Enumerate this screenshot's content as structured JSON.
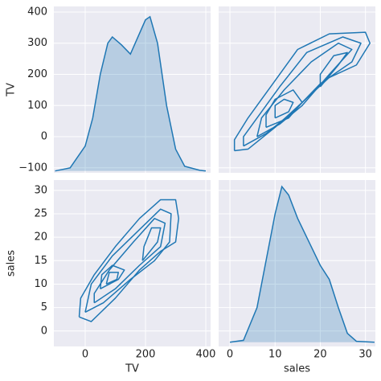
{
  "chart_data": [
    {
      "type": "area",
      "color": "#1f77b4",
      "ylabel": "TV",
      "show_xticks": false,
      "show_yticks": true,
      "xlim": [
        -104,
        416
      ],
      "ylim": [
        -116,
        418
      ],
      "xticks": [
        0,
        200,
        400
      ],
      "yticks": [
        {
          "value": -100,
          "label": "−100"
        },
        0,
        100,
        200,
        300,
        400
      ],
      "x": [
        -100,
        -50,
        0,
        25,
        50,
        75,
        90,
        120,
        150,
        175,
        200,
        215,
        240,
        270,
        300,
        330,
        380,
        400
      ],
      "values": [
        -110,
        -100,
        -30,
        60,
        200,
        300,
        320,
        295,
        265,
        320,
        375,
        385,
        300,
        100,
        -40,
        -95,
        -108,
        -110
      ]
    },
    {
      "type": "contour",
      "color": "#1f77b4",
      "show_xticks": false,
      "show_yticks": false,
      "xlim": [
        -2.5,
        32.2
      ],
      "ylim": [
        -116,
        418
      ],
      "xticks": [
        0,
        10,
        20,
        30
      ],
      "yticks": [
        -100,
        0,
        100,
        200,
        300,
        400
      ],
      "contours": [
        {
          "x": [
            1,
            4,
            10,
            16,
            22,
            28,
            31,
            30,
            22,
            15,
            9,
            4,
            1,
            1
          ],
          "y": [
            -45,
            -40,
            30,
            110,
            190,
            230,
            300,
            335,
            330,
            280,
            160,
            60,
            -10,
            -45
          ]
        },
        {
          "x": [
            3,
            8,
            14,
            20,
            27,
            29,
            25,
            17,
            11,
            6,
            3,
            3
          ],
          "y": [
            -30,
            10,
            80,
            170,
            240,
            300,
            320,
            270,
            160,
            60,
            0,
            -30
          ]
        },
        {
          "x": [
            6,
            11,
            16,
            22,
            27,
            24,
            18,
            12,
            7,
            6
          ],
          "y": [
            0,
            40,
            100,
            200,
            280,
            300,
            240,
            150,
            60,
            0
          ]
        },
        {
          "x": [
            8,
            13,
            16,
            14,
            10,
            8,
            8
          ],
          "y": [
            30,
            60,
            110,
            150,
            120,
            70,
            30
          ]
        },
        {
          "x": [
            10,
            13,
            14,
            12,
            10,
            10
          ],
          "y": [
            60,
            80,
            110,
            120,
            100,
            60
          ]
        },
        {
          "x": [
            20,
            24,
            26,
            23,
            20,
            20
          ],
          "y": [
            160,
            230,
            270,
            260,
            200,
            160
          ]
        }
      ]
    },
    {
      "type": "contour",
      "color": "#1f77b4",
      "xlabel": "TV",
      "ylabel": "sales",
      "show_xticks": true,
      "show_yticks": true,
      "xlim": [
        -104,
        416
      ],
      "ylim": [
        -3.3,
        32.2
      ],
      "xticks": [
        0,
        200,
        400
      ],
      "yticks": [
        0,
        5,
        10,
        15,
        20,
        25,
        30
      ],
      "contours": [
        {
          "x": [
            -20,
            20,
            100,
            180,
            250,
            300,
            310,
            300,
            250,
            180,
            100,
            30,
            -15,
            -20
          ],
          "y": [
            3,
            2,
            7,
            13,
            17,
            19,
            24,
            28,
            28,
            24,
            18,
            12,
            7,
            3
          ]
        },
        {
          "x": [
            0,
            60,
            150,
            230,
            280,
            285,
            250,
            170,
            90,
            20,
            0
          ],
          "y": [
            4,
            6,
            11,
            15,
            19,
            25,
            26,
            21,
            16,
            10,
            4
          ]
        },
        {
          "x": [
            30,
            100,
            180,
            250,
            265,
            230,
            160,
            80,
            30,
            30
          ],
          "y": [
            6,
            9,
            14,
            18,
            23,
            24,
            19,
            13,
            8,
            6
          ]
        },
        {
          "x": [
            50,
            110,
            130,
            90,
            55,
            50
          ],
          "y": [
            9,
            11,
            13,
            14,
            12,
            9
          ]
        },
        {
          "x": [
            70,
            105,
            110,
            80,
            70
          ],
          "y": [
            10,
            11,
            12.5,
            12.5,
            10
          ]
        },
        {
          "x": [
            190,
            240,
            250,
            220,
            195,
            190
          ],
          "y": [
            15,
            19,
            22,
            22,
            18,
            15
          ]
        }
      ]
    },
    {
      "type": "area",
      "color": "#1f77b4",
      "xlabel": "sales",
      "show_xticks": true,
      "show_yticks": false,
      "xlim": [
        -2.5,
        32.2
      ],
      "ylim": [
        -3.3,
        32.2
      ],
      "xticks": [
        0,
        10,
        20,
        30
      ],
      "yticks": [
        0,
        5,
        10,
        15,
        20,
        25,
        30
      ],
      "x": [
        0,
        3,
        6,
        8,
        10,
        11.5,
        13,
        15,
        18,
        20,
        22,
        24,
        26,
        28,
        32
      ],
      "values": [
        -2.4,
        -2,
        5,
        15,
        25,
        30.8,
        29,
        24,
        18,
        14,
        11,
        5,
        -0.5,
        -2.2,
        -2.4
      ]
    }
  ]
}
